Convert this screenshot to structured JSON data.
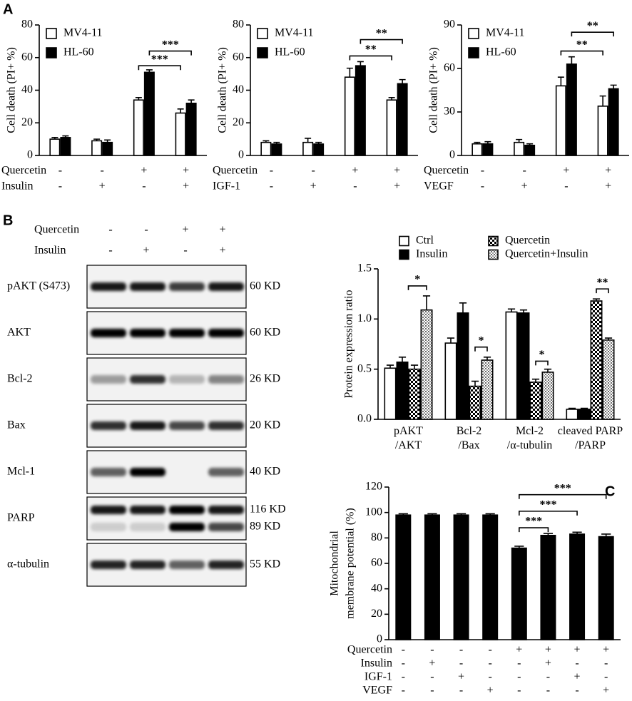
{
  "panel_labels": [
    "A",
    "B",
    "C"
  ],
  "chart_data": [
    {
      "type": "bar",
      "ylabel": "Cell death (PI+ %)",
      "ylim": [
        0,
        80
      ],
      "yticks": [
        0,
        20,
        40,
        60,
        80
      ],
      "series": [
        {
          "name": "MV4-11",
          "color": "#ffffff",
          "values": [
            10,
            9,
            34,
            26
          ],
          "errors": [
            1,
            1,
            1.5,
            2.5
          ]
        },
        {
          "name": "HL-60",
          "color": "#000000",
          "values": [
            11,
            8,
            51,
            32
          ],
          "errors": [
            1,
            1.5,
            1.5,
            2
          ]
        }
      ],
      "conditions": [
        {
          "name": "Quercetin",
          "signs": [
            "-",
            "-",
            "+",
            "+"
          ]
        },
        {
          "name": "Insulin",
          "signs": [
            "-",
            "+",
            "-",
            "+"
          ]
        }
      ],
      "annotations": [
        "***",
        "***"
      ]
    },
    {
      "type": "bar",
      "ylabel": "Cell death (PI+ %)",
      "ylim": [
        0,
        80
      ],
      "yticks": [
        0,
        20,
        40,
        60,
        80
      ],
      "series": [
        {
          "name": "MV4-11",
          "color": "#ffffff",
          "values": [
            8,
            8,
            48,
            34
          ],
          "errors": [
            1,
            2.5,
            5.5,
            1.5
          ]
        },
        {
          "name": "HL-60",
          "color": "#000000",
          "values": [
            7,
            7,
            55,
            44
          ],
          "errors": [
            1,
            1,
            2.5,
            2.5
          ]
        }
      ],
      "conditions": [
        {
          "name": "Quercetin",
          "signs": [
            "-",
            "-",
            "+",
            "+"
          ]
        },
        {
          "name": "IGF-1",
          "signs": [
            "-",
            "+",
            "-",
            "+"
          ]
        }
      ],
      "annotations": [
        "**",
        "**"
      ]
    },
    {
      "type": "bar",
      "ylabel": "Cell death (PI+ %)",
      "ylim": [
        0,
        90
      ],
      "yticks": [
        0,
        30,
        60,
        90
      ],
      "series": [
        {
          "name": "MV4-11",
          "color": "#ffffff",
          "values": [
            8,
            9,
            48,
            34
          ],
          "errors": [
            1,
            2,
            6,
            7
          ]
        },
        {
          "name": "HL-60",
          "color": "#000000",
          "values": [
            8,
            7,
            63,
            46
          ],
          "errors": [
            1.5,
            1,
            5,
            2.5
          ]
        }
      ],
      "conditions": [
        {
          "name": "Quercetin",
          "signs": [
            "-",
            "-",
            "+",
            "+"
          ]
        },
        {
          "name": "VEGF",
          "signs": [
            "-",
            "+",
            "-",
            "+"
          ]
        }
      ],
      "annotations": [
        "**",
        "**"
      ]
    },
    {
      "type": "bar",
      "ylabel": "Protein expression ratio",
      "ylim": [
        0,
        1.5
      ],
      "yticks": [
        {
          "value": 0,
          "label": "0.0"
        },
        0.5,
        {
          "value": 1,
          "label": "1.0"
        },
        1.5
      ],
      "categories": [
        "pAKT\n/AKT",
        "Bcl-2\n/Bax",
        "Mcl-2\n/α-tubulin",
        "cleaved PARP\n/PARP"
      ],
      "series": [
        {
          "name": "Ctrl",
          "color": "#ffffff",
          "values": [
            0.51,
            0.76,
            1.07,
            0.1
          ],
          "errors": [
            0.03,
            0.05,
            0.03,
            0.01
          ]
        },
        {
          "name": "Insulin",
          "color": "#000000",
          "values": [
            0.57,
            1.06,
            1.06,
            0.1
          ],
          "errors": [
            0.05,
            0.1,
            0.03,
            0.01
          ]
        },
        {
          "name": "Quercetin",
          "color": "#000000",
          "pattern": "checker",
          "values": [
            0.5,
            0.33,
            0.37,
            1.18
          ],
          "errors": [
            0.04,
            0.05,
            0.03,
            0.02
          ]
        },
        {
          "name": "Quercetin+Insulin",
          "color": "#000000",
          "pattern": "dots",
          "values": [
            1.09,
            0.59,
            0.47,
            0.79
          ],
          "errors": [
            0.14,
            0.03,
            0.03,
            0.02
          ]
        }
      ],
      "annotations": [
        "*",
        "*",
        "*",
        "**"
      ]
    },
    {
      "type": "bar",
      "ylabel": [
        "Mitochondrial",
        "membrane potential (%)"
      ],
      "ylim": [
        0,
        120
      ],
      "yticks": [
        0,
        20,
        40,
        60,
        80,
        100,
        120
      ],
      "series": [
        {
          "color": "#000000",
          "values": [
            98,
            98,
            98,
            98,
            72,
            82,
            83,
            81
          ],
          "errors": [
            1,
            1,
            1,
            1,
            1.5,
            1.5,
            1.5,
            2
          ]
        }
      ],
      "conditions": [
        {
          "name": "Quercetin",
          "signs": [
            "-",
            "-",
            "-",
            "-",
            "+",
            "+",
            "+",
            "+"
          ]
        },
        {
          "name": "Insulin",
          "signs": [
            "-",
            "+",
            "-",
            "-",
            "-",
            "+",
            "-",
            "-"
          ]
        },
        {
          "name": "IGF-1",
          "signs": [
            "-",
            "-",
            "+",
            "-",
            "-",
            "-",
            "+",
            "-"
          ]
        },
        {
          "name": "VEGF",
          "signs": [
            "-",
            "-",
            "-",
            "+",
            "-",
            "-",
            "-",
            "+"
          ]
        }
      ],
      "annotations": [
        "***",
        "***",
        "***"
      ]
    }
  ],
  "blot": {
    "treatments": [
      {
        "name": "Quercetin",
        "signs": [
          "-",
          "-",
          "+",
          "+"
        ]
      },
      {
        "name": "Insulin",
        "signs": [
          "-",
          "+",
          "-",
          "+"
        ]
      }
    ],
    "rows": [
      {
        "label": "pAKT (S473)",
        "sizes": [
          "60 KD"
        ]
      },
      {
        "label": "AKT",
        "sizes": [
          "60 KD"
        ]
      },
      {
        "label": "Bcl-2",
        "sizes": [
          "26 KD"
        ]
      },
      {
        "label": "Bax",
        "sizes": [
          "20 KD"
        ]
      },
      {
        "label": "Mcl-1",
        "sizes": [
          "40 KD"
        ]
      },
      {
        "label": "PARP",
        "sizes": [
          "116 KD",
          "89 KD"
        ]
      },
      {
        "label": "α-tubulin",
        "sizes": [
          "55 KD"
        ]
      }
    ]
  }
}
